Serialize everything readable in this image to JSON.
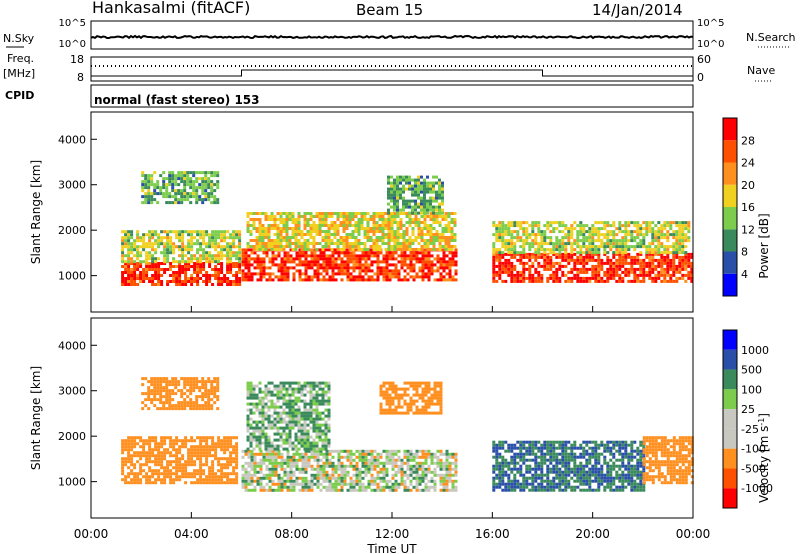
{
  "header": {
    "station": "Hankasalmi (fitACF)",
    "beam": "Beam 15",
    "date": "14/Jan/2014"
  },
  "noise_panel": {
    "left_label": "N.Sky",
    "left_ticks": [
      "10^5",
      "10^0"
    ],
    "right_ticks": [
      "10^5",
      "10^0"
    ],
    "right_label": "N.Search"
  },
  "freq_panel": {
    "left_label_1": "Freq.",
    "left_label_2": "[MHz]",
    "left_ticks": [
      "18",
      "8"
    ],
    "right_ticks": [
      "60",
      "0"
    ],
    "right_label": "Nave"
  },
  "cpid_panel": {
    "label": "CPID",
    "text": "normal (fast stereo) 153"
  },
  "colors": {
    "power_scale": [
      "#0000ff",
      "#2a4fa8",
      "#3a8a5c",
      "#7ccd4c",
      "#f0d020",
      "#ff9020",
      "#ff5000",
      "#ff0000"
    ],
    "velocity_scale": [
      "#ff0000",
      "#ff5000",
      "#ff9020",
      "#c8c8c0",
      "#c8c8c0",
      "#7ccd4c",
      "#3a8a5c",
      "#2a4fa8",
      "#0000ff"
    ]
  },
  "chart_data": [
    {
      "type": "heatmap",
      "title": "",
      "xlabel": "Time UT",
      "ylabel": "Slant Range [km]",
      "x_ticks": [
        "00:00",
        "04:00",
        "08:00",
        "12:00",
        "16:00",
        "20:00",
        "00:00"
      ],
      "x_range_hours": [
        0,
        24
      ],
      "y_ticks": [
        "1000",
        "2000",
        "3000",
        "4000"
      ],
      "ylim": [
        200,
        4600
      ],
      "colorbar": {
        "label": "Power [dB]",
        "ticks": [
          "4",
          "8",
          "12",
          "16",
          "20",
          "24",
          "28"
        ],
        "range": [
          0,
          32
        ]
      },
      "regions": [
        {
          "t0": 1.2,
          "t1": 5.9,
          "r0": 800,
          "r1": 1300,
          "value_db": 28
        },
        {
          "t0": 1.2,
          "t1": 5.9,
          "r0": 1300,
          "r1": 2000,
          "value_db": 16
        },
        {
          "t0": 2.0,
          "t1": 5.0,
          "r0": 2600,
          "r1": 3300,
          "value_db": 12
        },
        {
          "t0": 6.0,
          "t1": 14.6,
          "r0": 900,
          "r1": 1600,
          "value_db": 28
        },
        {
          "t0": 6.2,
          "t1": 14.5,
          "r0": 1600,
          "r1": 2400,
          "value_db": 18
        },
        {
          "t0": 11.8,
          "t1": 14.0,
          "r0": 2400,
          "r1": 3200,
          "value_db": 12
        },
        {
          "t0": 16.0,
          "t1": 24.0,
          "r0": 900,
          "r1": 1500,
          "value_db": 28
        },
        {
          "t0": 16.0,
          "t1": 23.8,
          "r0": 1500,
          "r1": 2200,
          "value_db": 16
        }
      ]
    },
    {
      "type": "heatmap",
      "title": "",
      "xlabel": "Time UT",
      "ylabel": "Slant Range [km]",
      "x_ticks": [
        "00:00",
        "04:00",
        "08:00",
        "12:00",
        "16:00",
        "20:00",
        "00:00"
      ],
      "x_range_hours": [
        0,
        24
      ],
      "y_ticks": [
        "1000",
        "2000",
        "3000",
        "4000"
      ],
      "ylim": [
        200,
        4600
      ],
      "colorbar": {
        "label_main": "Velocity",
        "label_unit": "[m s",
        "label_exp": "-1",
        "label_close": "]",
        "ticks": [
          "1000",
          "500",
          "100",
          "25",
          "-25",
          "-100",
          "-500",
          "-1000"
        ]
      },
      "regions": [
        {
          "t0": 1.2,
          "t1": 5.8,
          "r0": 1000,
          "r1": 2000,
          "velocity": -300
        },
        {
          "t0": 2.0,
          "t1": 5.0,
          "r0": 2600,
          "r1": 3300,
          "velocity": -300
        },
        {
          "t0": 6.0,
          "t1": 14.6,
          "r0": 800,
          "r1": 1700,
          "velocity": 0
        },
        {
          "t0": 6.2,
          "t1": 9.5,
          "r0": 1700,
          "r1": 3200,
          "velocity": 100
        },
        {
          "t0": 11.5,
          "t1": 14.0,
          "r0": 2500,
          "r1": 3200,
          "velocity": -300
        },
        {
          "t0": 16.0,
          "t1": 22.0,
          "r0": 800,
          "r1": 1900,
          "velocity": 500
        },
        {
          "t0": 22.0,
          "t1": 24.0,
          "r0": 1000,
          "r1": 2000,
          "velocity": -300
        }
      ]
    }
  ]
}
